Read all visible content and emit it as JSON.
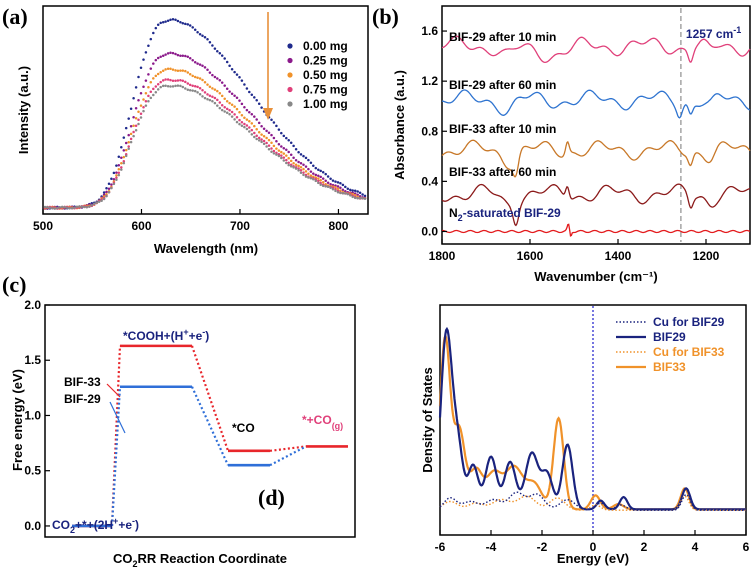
{
  "chart_data": [
    {
      "id": "a",
      "panel_label": "(a)",
      "type": "scatter",
      "xlabel": "Wavelength (nm)",
      "ylabel": "Intensity (a.u.)",
      "xlim": [
        500,
        830
      ],
      "ylim": [
        0,
        1.0
      ],
      "xticks": [
        500,
        600,
        700,
        800
      ],
      "arrow_color": "#e8903a",
      "series": [
        {
          "name": "0.00 mg",
          "color": "#1f2a8c",
          "peak": 0.925
        },
        {
          "name": "0.25 mg",
          "color": "#8b1a8b",
          "peak": 0.765
        },
        {
          "name": "0.50 mg",
          "color": "#f0922a",
          "peak": 0.69
        },
        {
          "name": "0.75 mg",
          "color": "#e0407a",
          "peak": 0.64
        },
        {
          "name": "1.00 mg",
          "color": "#888888",
          "peak": 0.612
        }
      ],
      "baseline": 0.03,
      "peak_x": 622
    },
    {
      "id": "b",
      "panel_label": "(b)",
      "type": "line",
      "xlabel": "Wavenumber (cm⁻¹)",
      "ylabel": "Absorbance (a.u.)",
      "xlim": [
        1800,
        1100
      ],
      "ylim": [
        -0.1,
        1.8
      ],
      "xticks": [
        1800,
        1600,
        1400,
        1200
      ],
      "yticks": [
        0.0,
        0.4,
        0.8,
        1.2,
        1.6
      ],
      "annotation": "1257 cm",
      "annotation_sup": "-1",
      "annotation_x": 1257,
      "series": [
        {
          "name": "BIF-29 after 10 min",
          "color": "#e0407a",
          "offset": 1.48
        },
        {
          "name": "BIF-29 after 60 min",
          "color": "#2f74d0",
          "offset": 1.05
        },
        {
          "name": "BIF-33 after 10 min",
          "color": "#c87828",
          "offset": 0.65
        },
        {
          "name": "BIF-33 after 60 min",
          "color": "#8b1a1a",
          "offset": 0.3
        },
        {
          "name": "N",
          "sub": "2",
          "name_tail": "-saturated BIF-29",
          "color": "#e31a1c",
          "label_color": "#1a237e",
          "offset": 0.0
        }
      ]
    },
    {
      "id": "c",
      "panel_label": "(c)",
      "type": "line",
      "xlabel": "CO",
      "xlabel_sub": "2",
      "xlabel_tail": "RR Reaction Coordinate",
      "ylabel": "Free energy (eV)",
      "ylim": [
        -0.1,
        2.0
      ],
      "yticks": [
        0.0,
        0.5,
        1.0,
        1.5,
        2.0
      ],
      "series": [
        {
          "name": "BIF-33",
          "color": "#e8262b",
          "values": [
            0.0,
            1.63,
            0.68,
            0.72
          ]
        },
        {
          "name": "BIF-29",
          "color": "#2f6fd8",
          "values": [
            0.0,
            1.26,
            0.55,
            0.72
          ]
        }
      ],
      "labels": {
        "s0_a": "CO",
        "s0_b": "2",
        "s0_c": "+*+(2H",
        "s0_d": "+",
        "s0_e": "+e",
        "s0_f": "-",
        "s0_g": ")",
        "s1_a": "*COOH+(H",
        "s1_b": "+",
        "s1_c": "+e",
        "s1_d": "-",
        "s1_e": ")",
        "s2": "*CO",
        "s3_a": "*+CO",
        "s3_b": "(g)"
      }
    },
    {
      "id": "d",
      "panel_label": "(d)",
      "type": "line",
      "xlabel": "Energy (eV)",
      "ylabel": "Density of States",
      "xlim": [
        -6,
        6
      ],
      "xticks": [
        -6,
        -4,
        -2,
        0,
        2,
        4,
        6
      ],
      "series": [
        {
          "name": "Cu for BIF29",
          "color": "#1a237e",
          "style": "dotted"
        },
        {
          "name": "BIF29",
          "color": "#1a237e",
          "style": "solid"
        },
        {
          "name": "Cu for BIF33",
          "color": "#f0922a",
          "style": "dotted"
        },
        {
          "name": "BIF33",
          "color": "#f0922a",
          "style": "solid"
        }
      ]
    }
  ]
}
